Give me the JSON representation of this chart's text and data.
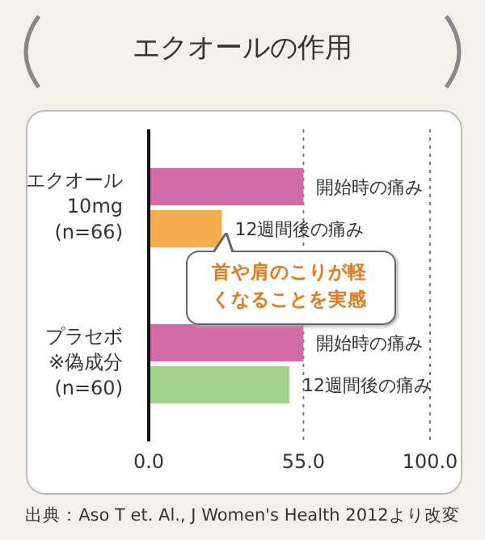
{
  "chart_data": {
    "type": "bar",
    "orientation": "horizontal",
    "title": "エクオールの作用",
    "categories": [
      "エクオール\n10mg\n(n=66)",
      "プラセボ\n※偽成分\n(n=60)"
    ],
    "series": [
      {
        "name": "開始時の痛み",
        "color": "#d16ca8",
        "values": [
          55,
          55
        ]
      },
      {
        "name": "12週間後の痛み",
        "colors": [
          "#f5ae4e",
          "#a3d38b"
        ],
        "values": [
          26,
          50
        ]
      }
    ],
    "xlim": [
      0,
      100
    ],
    "xticks": [
      {
        "value": 0,
        "label": "0.0"
      },
      {
        "value": 55,
        "label": "55.0"
      },
      {
        "value": 100,
        "label": "100.0"
      }
    ],
    "grid": "x",
    "annotations": [
      "首や肩のこりが軽くなることを実感",
      "出典：Aso T et. Al., J Women's Health 2012より改変"
    ]
  }
}
